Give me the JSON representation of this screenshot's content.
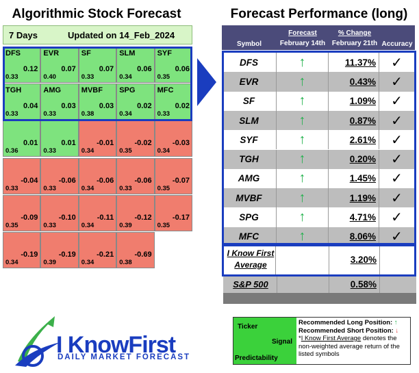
{
  "left_title": "Algorithmic Stock Forecast",
  "right_title": "Forecast Performance (long)",
  "left_header": {
    "days": "7 Days",
    "updated": "Updated on 14_Feb_2024"
  },
  "chart_data": {
    "type": "table",
    "forecast_grid": [
      [
        {
          "symbol": "DFS",
          "signal": "0.12",
          "predictability": "0.33"
        },
        {
          "symbol": "EVR",
          "signal": "0.07",
          "predictability": "0.40"
        },
        {
          "symbol": "SF",
          "signal": "0.07",
          "predictability": "0.33"
        },
        {
          "symbol": "SLM",
          "signal": "0.06",
          "predictability": "0.34"
        },
        {
          "symbol": "SYF",
          "signal": "0.06",
          "predictability": "0.35"
        }
      ],
      [
        {
          "symbol": "TGH",
          "signal": "0.04",
          "predictability": "0.33"
        },
        {
          "symbol": "AMG",
          "signal": "0.03",
          "predictability": "0.33"
        },
        {
          "symbol": "MVBF",
          "signal": "0.03",
          "predictability": "0.38"
        },
        {
          "symbol": "SPG",
          "signal": "0.02",
          "predictability": "0.34"
        },
        {
          "symbol": "MFC",
          "signal": "0.02",
          "predictability": "0.33"
        }
      ],
      [
        {
          "symbol": "",
          "signal": "0.01",
          "predictability": "0.36"
        },
        {
          "symbol": "",
          "signal": "0.01",
          "predictability": "0.33"
        },
        {
          "symbol": "",
          "signal": "-0.01",
          "predictability": "0.34"
        },
        {
          "symbol": "",
          "signal": "-0.02",
          "predictability": "0.35"
        },
        {
          "symbol": "",
          "signal": "-0.03",
          "predictability": "0.34"
        }
      ],
      [
        {
          "symbol": "",
          "signal": "-0.04",
          "predictability": "0.33"
        },
        {
          "symbol": "",
          "signal": "-0.06",
          "predictability": "0.33"
        },
        {
          "symbol": "",
          "signal": "-0.06",
          "predictability": "0.34"
        },
        {
          "symbol": "",
          "signal": "-0.06",
          "predictability": "0.33"
        },
        {
          "symbol": "",
          "signal": "-0.07",
          "predictability": "0.35"
        }
      ],
      [
        {
          "symbol": "",
          "signal": "-0.09",
          "predictability": "0.35"
        },
        {
          "symbol": "",
          "signal": "-0.10",
          "predictability": "0.33"
        },
        {
          "symbol": "",
          "signal": "-0.11",
          "predictability": "0.34"
        },
        {
          "symbol": "",
          "signal": "-0.12",
          "predictability": "0.39"
        },
        {
          "symbol": "",
          "signal": "-0.17",
          "predictability": "0.35"
        }
      ],
      [
        {
          "symbol": "",
          "signal": "-0.19",
          "predictability": "0.34"
        },
        {
          "symbol": "",
          "signal": "-0.19",
          "predictability": "0.39"
        },
        {
          "symbol": "",
          "signal": "-0.21",
          "predictability": "0.34"
        },
        {
          "symbol": "",
          "signal": "-0.69",
          "predictability": "0.38"
        }
      ]
    ],
    "performance": {
      "headers": {
        "symbol": "Symbol",
        "forecast_top": "Forecast",
        "forecast_bottom": "February 14th",
        "change_top": "% Change",
        "change_bottom": "February 21th",
        "accuracy": "Accuracy"
      },
      "rows": [
        {
          "symbol": "DFS",
          "forecast": "↑",
          "change": "11.37%",
          "accuracy": "✓"
        },
        {
          "symbol": "EVR",
          "forecast": "↑",
          "change": "0.43%",
          "accuracy": "✓"
        },
        {
          "symbol": "SF",
          "forecast": "↑",
          "change": "1.09%",
          "accuracy": "✓"
        },
        {
          "symbol": "SLM",
          "forecast": "↑",
          "change": "0.87%",
          "accuracy": "✓"
        },
        {
          "symbol": "SYF",
          "forecast": "↑",
          "change": "2.61%",
          "accuracy": "✓"
        },
        {
          "symbol": "TGH",
          "forecast": "↑",
          "change": "0.20%",
          "accuracy": "✓"
        },
        {
          "symbol": "AMG",
          "forecast": "↑",
          "change": "1.45%",
          "accuracy": "✓"
        },
        {
          "symbol": "MVBF",
          "forecast": "↑",
          "change": "1.19%",
          "accuracy": "✓"
        },
        {
          "symbol": "SPG",
          "forecast": "↑",
          "change": "4.71%",
          "accuracy": "✓"
        },
        {
          "symbol": "MFC",
          "forecast": "↑",
          "change": "8.06%",
          "accuracy": "✓"
        }
      ],
      "average": {
        "label_line1": "I Know First",
        "label_line2": "Average",
        "change": "3.20%"
      },
      "sp500": {
        "label": "S&P 500",
        "change": "0.58%"
      }
    }
  },
  "legend": {
    "ticker": "Ticker",
    "signal": "Signal",
    "predictability": "Predictability",
    "long": "Recommended Long Position:",
    "short": "Recommended Short Position:",
    "long_arrow": "↑",
    "short_arrow": "↓",
    "note_star": "*",
    "note_name": "I Know First Average",
    "note_rest": " denotes the non-weighted average return of the listed symbols"
  },
  "logo": {
    "name": "I KnowFirst",
    "tagline": "DAILY MARKET FORECAST"
  },
  "colors": {
    "positive": "#7ee37e",
    "negative": "#f07d6e",
    "accent": "#1a3dbf",
    "header": "#4b4b7a"
  }
}
